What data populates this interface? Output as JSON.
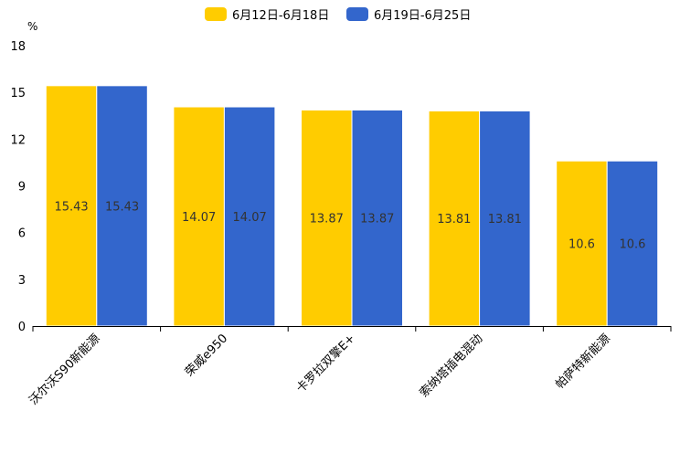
{
  "chart_data": {
    "type": "bar",
    "title": "",
    "ylabel": "%",
    "xlabel": "",
    "ylim": [
      0,
      18
    ],
    "yticks": [
      0,
      3,
      6,
      9,
      12,
      15,
      18
    ],
    "categories": [
      "沃尔沃S90新能源",
      "荣威e950",
      "卡罗拉双擎E+",
      "索纳塔插电混动",
      "帕萨特新能源"
    ],
    "series": [
      {
        "name": "6月12日-6月18日",
        "color": "#FFCC00",
        "values": [
          15.43,
          14.07,
          13.87,
          13.81,
          10.6
        ]
      },
      {
        "name": "6月19日-6月25日",
        "color": "#3366CC",
        "values": [
          15.43,
          14.07,
          13.87,
          13.81,
          10.6
        ]
      }
    ],
    "legend_position": "top-center",
    "grid": false
  }
}
